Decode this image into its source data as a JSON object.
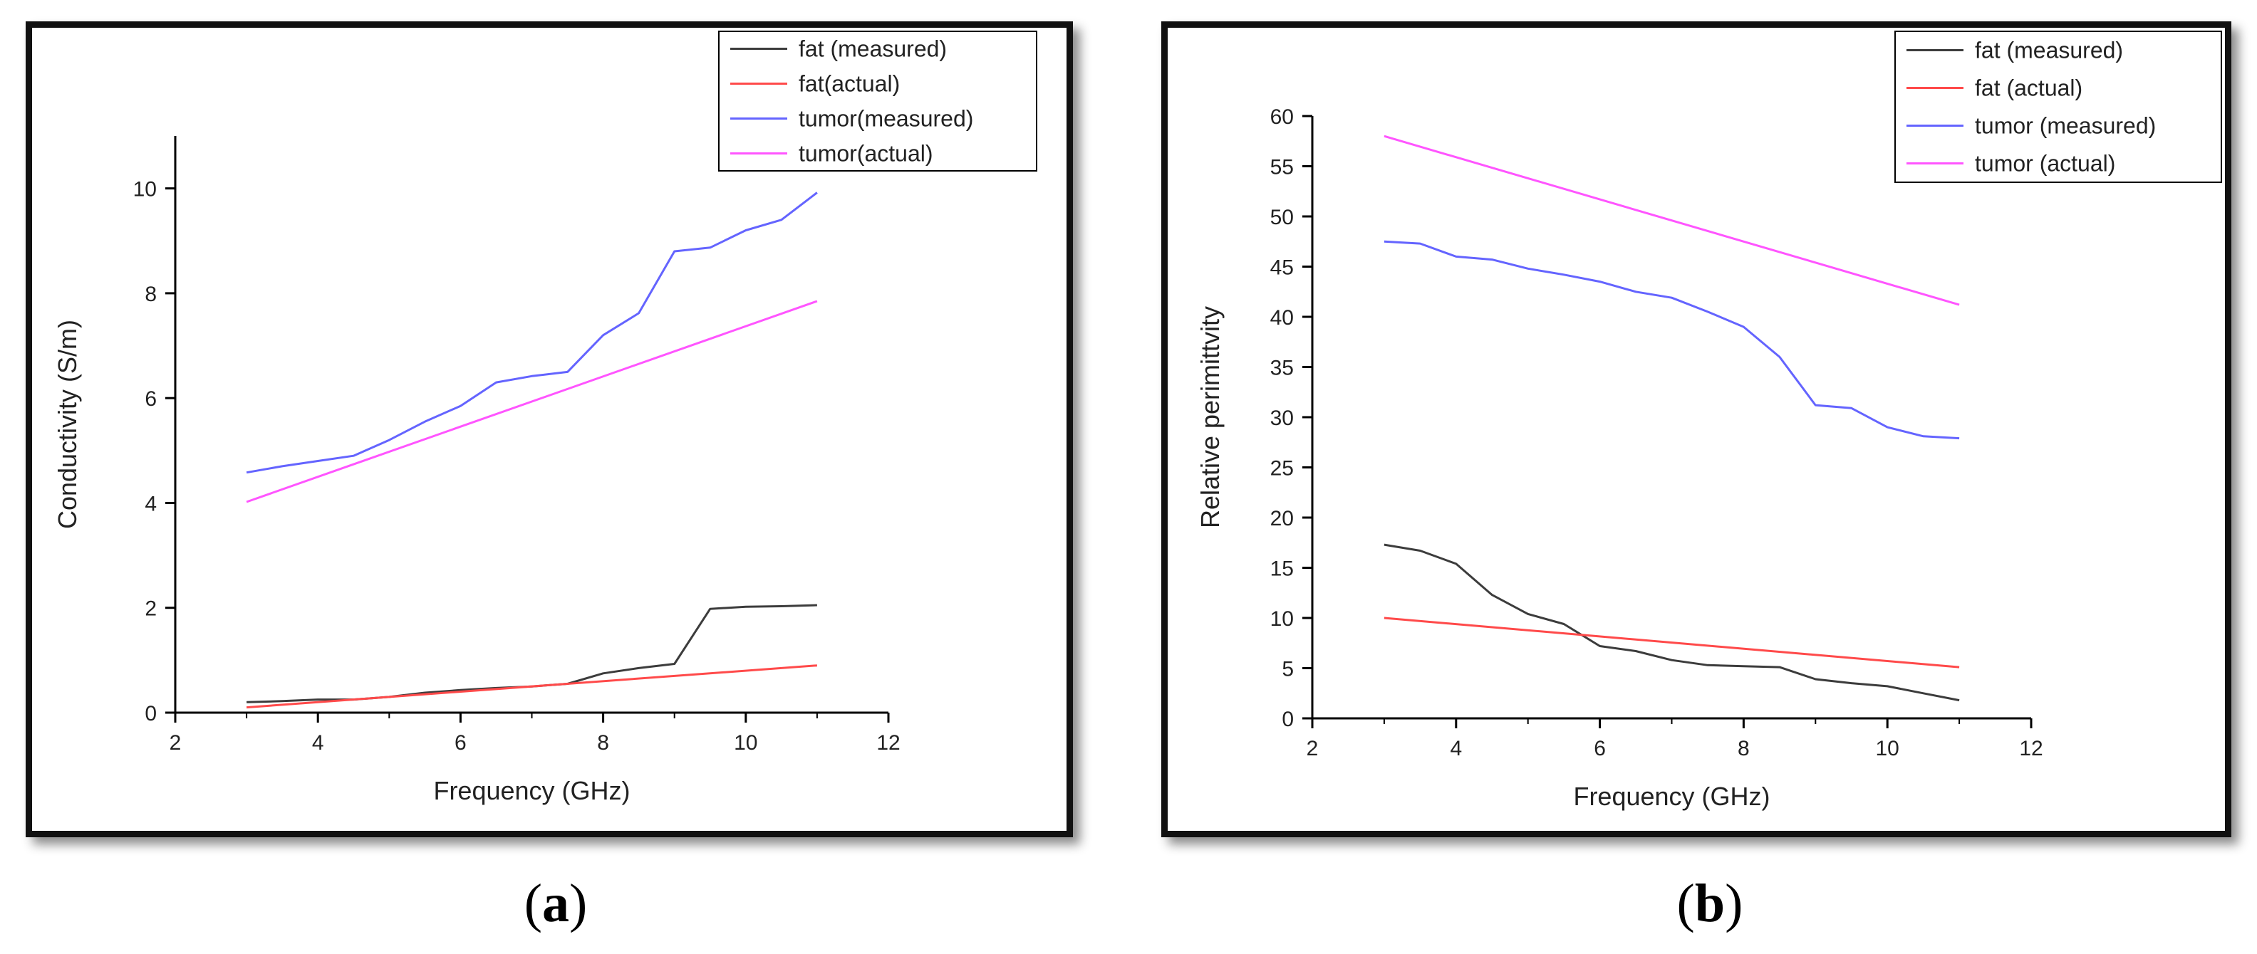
{
  "chart_data": [
    {
      "type": "line",
      "xlabel": "Frequency (GHz)",
      "ylabel": "Conductivity (S/m)",
      "xlim": [
        2,
        12
      ],
      "ylim": [
        0,
        11
      ],
      "xticks": [
        2,
        4,
        6,
        8,
        10,
        12
      ],
      "yticks": [
        0,
        2,
        4,
        6,
        8,
        10
      ],
      "grid": false,
      "legend_position": "top-right",
      "series": [
        {
          "name": "fat (measured)",
          "color": "#3c3c3c",
          "x": [
            3,
            3.5,
            4,
            4.5,
            5,
            5.5,
            6,
            6.5,
            7,
            7.5,
            8,
            8.5,
            9,
            9.5,
            10,
            10.5,
            11
          ],
          "y": [
            0.2,
            0.22,
            0.25,
            0.25,
            0.3,
            0.38,
            0.43,
            0.47,
            0.5,
            0.55,
            0.75,
            0.85,
            0.93,
            1.98,
            2.02,
            2.03,
            2.05
          ]
        },
        {
          "name": "fat(actual)",
          "color": "#ff4a4a",
          "x": [
            3,
            11
          ],
          "y": [
            0.1,
            0.9
          ]
        },
        {
          "name": "tumor(measured)",
          "color": "#6464ff",
          "x": [
            3,
            3.5,
            4,
            4.5,
            5,
            5.5,
            6,
            6.5,
            7,
            7.5,
            8,
            8.5,
            9,
            9.5,
            10,
            10.5,
            11
          ],
          "y": [
            4.58,
            4.7,
            4.8,
            4.9,
            5.2,
            5.55,
            5.85,
            6.3,
            6.42,
            6.5,
            7.2,
            7.62,
            8.8,
            8.87,
            9.2,
            9.4,
            9.92
          ]
        },
        {
          "name": "tumor(actual)",
          "color": "#ff55ff",
          "x": [
            3,
            11
          ],
          "y": [
            4.02,
            7.85
          ]
        }
      ]
    },
    {
      "type": "line",
      "xlabel": "Frequency (GHz)",
      "ylabel": "Relative perimittvity",
      "xlim": [
        2,
        12
      ],
      "ylim": [
        0,
        60
      ],
      "xticks": [
        2,
        4,
        6,
        8,
        10,
        12
      ],
      "yticks": [
        0,
        5,
        10,
        15,
        20,
        25,
        30,
        35,
        40,
        45,
        50,
        55,
        60
      ],
      "grid": false,
      "legend_position": "top-right",
      "series": [
        {
          "name": "fat (measured)",
          "color": "#3c3c3c",
          "x": [
            3,
            3.5,
            4,
            4.5,
            5,
            5.5,
            6,
            6.5,
            7,
            7.5,
            8,
            8.5,
            9,
            9.5,
            10,
            10.5,
            11
          ],
          "y": [
            17.3,
            16.7,
            15.4,
            12.3,
            10.4,
            9.4,
            7.2,
            6.7,
            5.8,
            5.3,
            5.2,
            5.1,
            3.9,
            3.5,
            3.2,
            2.5,
            1.8
          ]
        },
        {
          "name": "fat (actual)",
          "color": "#ff4a4a",
          "x": [
            3,
            11
          ],
          "y": [
            10,
            5.1
          ]
        },
        {
          "name": "tumor (measured)",
          "color": "#6464ff",
          "x": [
            3,
            3.5,
            4,
            4.5,
            5,
            5.5,
            6,
            6.5,
            7,
            7.5,
            8,
            8.5,
            9,
            9.5,
            10,
            10.5,
            11
          ],
          "y": [
            47.5,
            47.3,
            46,
            45.7,
            44.8,
            44.2,
            43.5,
            42.5,
            41.9,
            40.5,
            39,
            36,
            31.2,
            30.9,
            29,
            28.1,
            27.9
          ]
        },
        {
          "name": "tumor (actual)",
          "color": "#ff55ff",
          "x": [
            3,
            11
          ],
          "y": [
            58,
            41.2
          ]
        }
      ]
    }
  ],
  "captions": [
    {
      "open": "(",
      "letter": "a",
      "close": ")"
    },
    {
      "open": "(",
      "letter": "b",
      "close": ")"
    }
  ]
}
